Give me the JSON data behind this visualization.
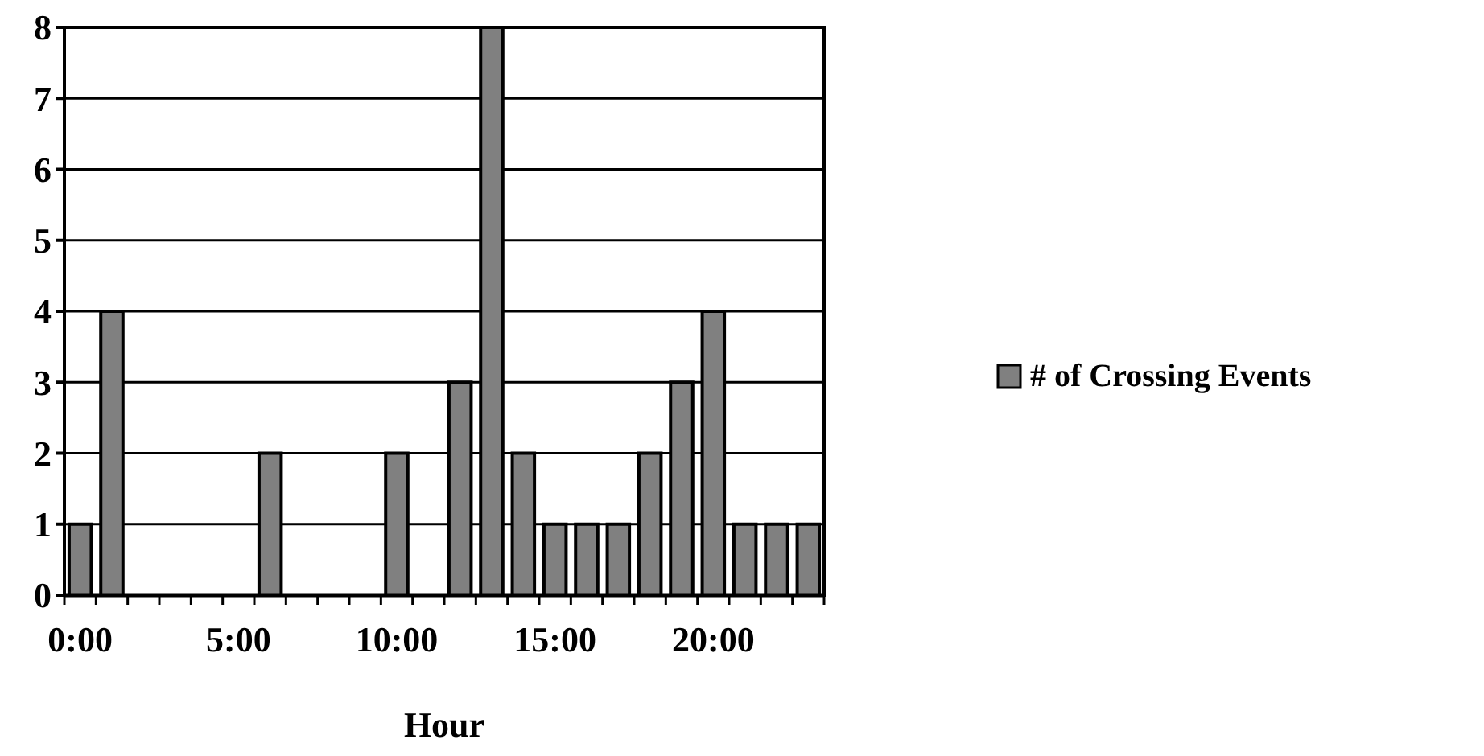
{
  "chart_data": {
    "type": "bar",
    "xlabel": "Hour",
    "categories": [
      "0:00",
      null,
      null,
      null,
      null,
      "5:00",
      null,
      null,
      null,
      null,
      "10:00",
      null,
      null,
      null,
      null,
      "15:00",
      null,
      null,
      null,
      null,
      "20:00",
      null,
      null,
      null
    ],
    "series": [
      {
        "name": "# of Crossing Events",
        "color": "#808080",
        "values": [
          1,
          4,
          0,
          0,
          0,
          0,
          2,
          0,
          0,
          0,
          2,
          0,
          3,
          8,
          2,
          1,
          1,
          1,
          2,
          3,
          4,
          1,
          1,
          1
        ]
      }
    ],
    "ylim": [
      0,
      8
    ],
    "yticks": [
      0,
      1,
      2,
      3,
      4,
      5,
      6,
      7,
      8
    ],
    "grid": "y",
    "legend": "right"
  }
}
